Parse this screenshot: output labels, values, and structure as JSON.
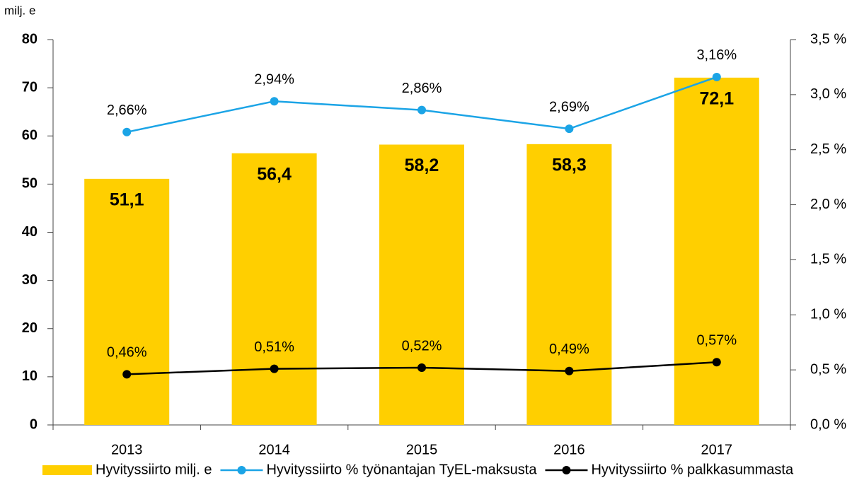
{
  "chart_data": {
    "type": "combo",
    "y_label": "milj. e",
    "categories": [
      "2013",
      "2014",
      "2015",
      "2016",
      "2017"
    ],
    "series": [
      {
        "name": "Hyvityssiirto milj. e",
        "type": "bar",
        "color": "#ffcf00",
        "values": [
          51.1,
          56.4,
          58.2,
          58.3,
          72.1
        ],
        "value_labels": [
          "51,1",
          "56,4",
          "58,2",
          "58,3",
          "72,1"
        ]
      },
      {
        "name": "Hyvityssiirto % työnantajan TyEL-maksusta",
        "type": "line",
        "axis": "y2",
        "color": "#1ba4e6",
        "values": [
          2.66,
          2.94,
          2.86,
          2.69,
          3.16
        ],
        "value_labels": [
          "2,66%",
          "2,94%",
          "2,86%",
          "2,69%",
          "3,16%"
        ]
      },
      {
        "name": "Hyvityssiirto % palkkasummasta",
        "type": "line",
        "axis": "y2",
        "color": "#000000",
        "values": [
          0.46,
          0.51,
          0.52,
          0.49,
          0.57
        ],
        "value_labels": [
          "0,46%",
          "0,51%",
          "0,52%",
          "0,49%",
          "0,57%"
        ]
      }
    ],
    "ylim": [
      0,
      80
    ],
    "yticks": [
      0,
      10,
      20,
      30,
      40,
      50,
      60,
      70,
      80
    ],
    "y2lim": [
      0,
      3.5
    ],
    "y2ticks": [
      {
        "value": 0,
        "label": "0,0 %"
      },
      {
        "value": 0.5,
        "label": "0,5 %"
      },
      {
        "value": 1,
        "label": "1,0 %"
      },
      {
        "value": 1.5,
        "label": "1,5 %"
      },
      {
        "value": 2,
        "label": "2,0 %"
      },
      {
        "value": 2.5,
        "label": "2,5 %"
      },
      {
        "value": 3,
        "label": "3,0 %"
      },
      {
        "value": 3.5,
        "label": "3,5 %"
      }
    ],
    "legend": "bottom"
  }
}
